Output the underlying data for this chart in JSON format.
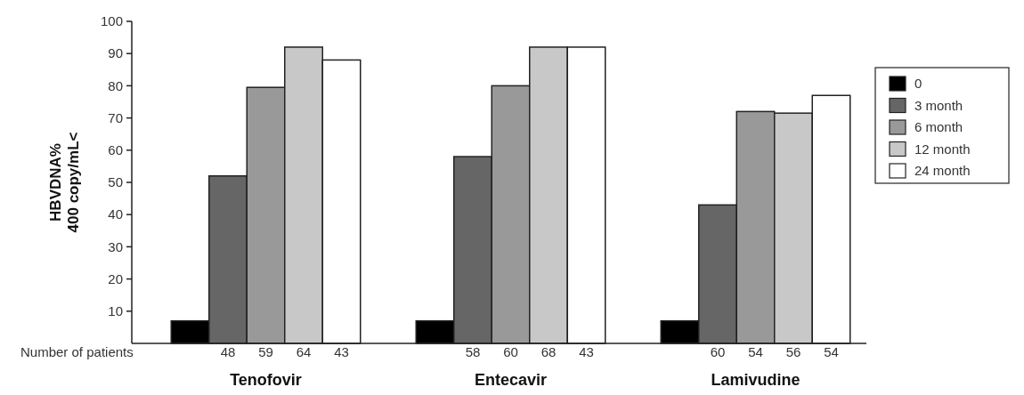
{
  "chart_data": {
    "type": "bar",
    "ylabel": "HBVDNA%\n400 copy/mL<",
    "categories": [
      "Tenofovir",
      "Entecavir",
      "Lamivudine"
    ],
    "series": [
      {
        "name": "0",
        "color": "#000000",
        "values": [
          7,
          7,
          7
        ]
      },
      {
        "name": "3 month",
        "color": "#666666",
        "values": [
          52,
          58,
          43
        ]
      },
      {
        "name": "6 month",
        "color": "#999999",
        "values": [
          79.5,
          80,
          72
        ]
      },
      {
        "name": "12 month",
        "color": "#c8c8c8",
        "values": [
          92,
          92,
          71.5
        ]
      },
      {
        "name": "24 month",
        "color": "#ffffff",
        "values": [
          88,
          92,
          77
        ]
      }
    ],
    "ylim": [
      0,
      100
    ],
    "yticks": [
      10,
      20,
      30,
      40,
      50,
      60,
      70,
      80,
      90,
      100
    ],
    "legend": "right",
    "annotations": [
      "Number of patients",
      "48",
      "59",
      "64",
      "43",
      "58",
      "60",
      "68",
      "43",
      "60",
      "54",
      "56",
      "54"
    ]
  }
}
